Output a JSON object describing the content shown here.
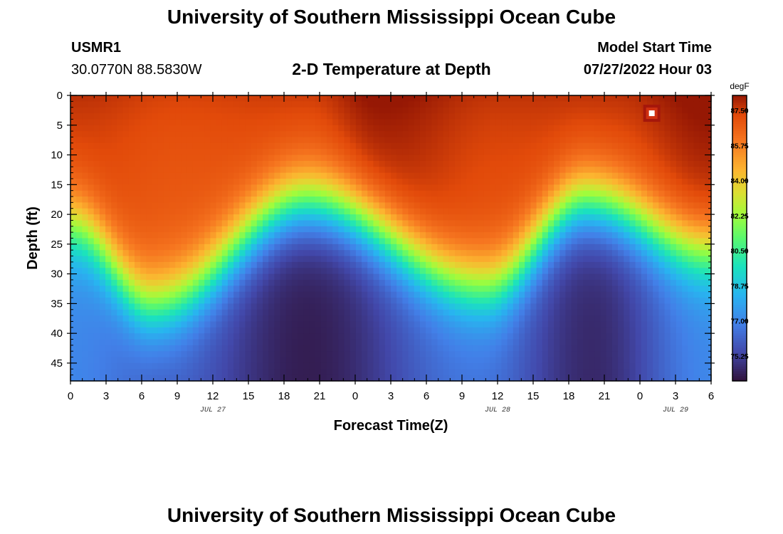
{
  "page": {
    "title": "University of Southern Mississippi Ocean Cube",
    "footer_title": "University of Southern Mississippi Ocean Cube",
    "station_id": "USMR1",
    "station_coords": "30.0770N  88.5830W",
    "model_start_label": "Model Start Time",
    "model_start_value": "07/27/2022 Hour 03"
  },
  "chart_data": {
    "type": "heatmap",
    "title": "2-D Temperature at Depth",
    "xlabel": "Forecast Time(Z)",
    "ylabel": "Depth (ft)",
    "x_range_hours": [
      0,
      54
    ],
    "y_range_ft": [
      0,
      48
    ],
    "x_tick_labels": [
      "0",
      "3",
      "6",
      "9",
      "12",
      "15",
      "18",
      "21",
      "0",
      "3",
      "6",
      "9",
      "12",
      "15",
      "18",
      "21",
      "0",
      "3",
      "6"
    ],
    "x_tick_hours": [
      0,
      3,
      6,
      9,
      12,
      15,
      18,
      21,
      24,
      27,
      30,
      33,
      36,
      39,
      42,
      45,
      48,
      51,
      54
    ],
    "date_labels": [
      {
        "text": "JUL 27",
        "hour": 12
      },
      {
        "text": "JUL 28",
        "hour": 36
      },
      {
        "text": "JUL 29",
        "hour": 51
      }
    ],
    "y_tick_labels": [
      "0",
      "5",
      "10",
      "15",
      "20",
      "25",
      "30",
      "35",
      "40",
      "45"
    ],
    "y_ticks_ft": [
      0,
      5,
      10,
      15,
      20,
      25,
      30,
      35,
      40,
      45
    ],
    "colorbar": {
      "unit": "degF",
      "range": [
        74.0,
        88.25
      ],
      "labels": [
        "87.50",
        "85.75",
        "84.00",
        "82.25",
        "80.50",
        "78.75",
        "77.00",
        "75.25"
      ],
      "label_values": [
        87.5,
        85.75,
        84.0,
        82.25,
        80.5,
        78.75,
        77.0,
        75.25
      ]
    },
    "thermocline_depth_ft": [
      {
        "hour": 0,
        "depth": 22
      },
      {
        "hour": 7,
        "depth": 35
      },
      {
        "hour": 20,
        "depth": 18
      },
      {
        "hour": 35,
        "depth": 32
      },
      {
        "hour": 43.5,
        "depth": 18
      },
      {
        "hour": 54,
        "depth": 26
      }
    ],
    "surface_temperature_degF": [
      {
        "hour": 0,
        "value": 87.2
      },
      {
        "hour": 9,
        "value": 86.8
      },
      {
        "hour": 20,
        "value": 87.0
      },
      {
        "hour": 26,
        "value": 87.8
      },
      {
        "hour": 36,
        "value": 87.1
      },
      {
        "hour": 46,
        "value": 87.2
      },
      {
        "hour": 54,
        "value": 87.9
      }
    ],
    "bottom_temperature_degF": [
      {
        "hour": 0,
        "value": 77.0
      },
      {
        "hour": 8,
        "value": 76.0
      },
      {
        "hour": 20,
        "value": 74.3
      },
      {
        "hour": 34,
        "value": 76.5
      },
      {
        "hour": 44,
        "value": 74.6
      },
      {
        "hour": 54,
        "value": 77.0
      }
    ],
    "point_markers": [
      {
        "hour": 49,
        "depth_ft": 3,
        "label": ""
      }
    ]
  }
}
